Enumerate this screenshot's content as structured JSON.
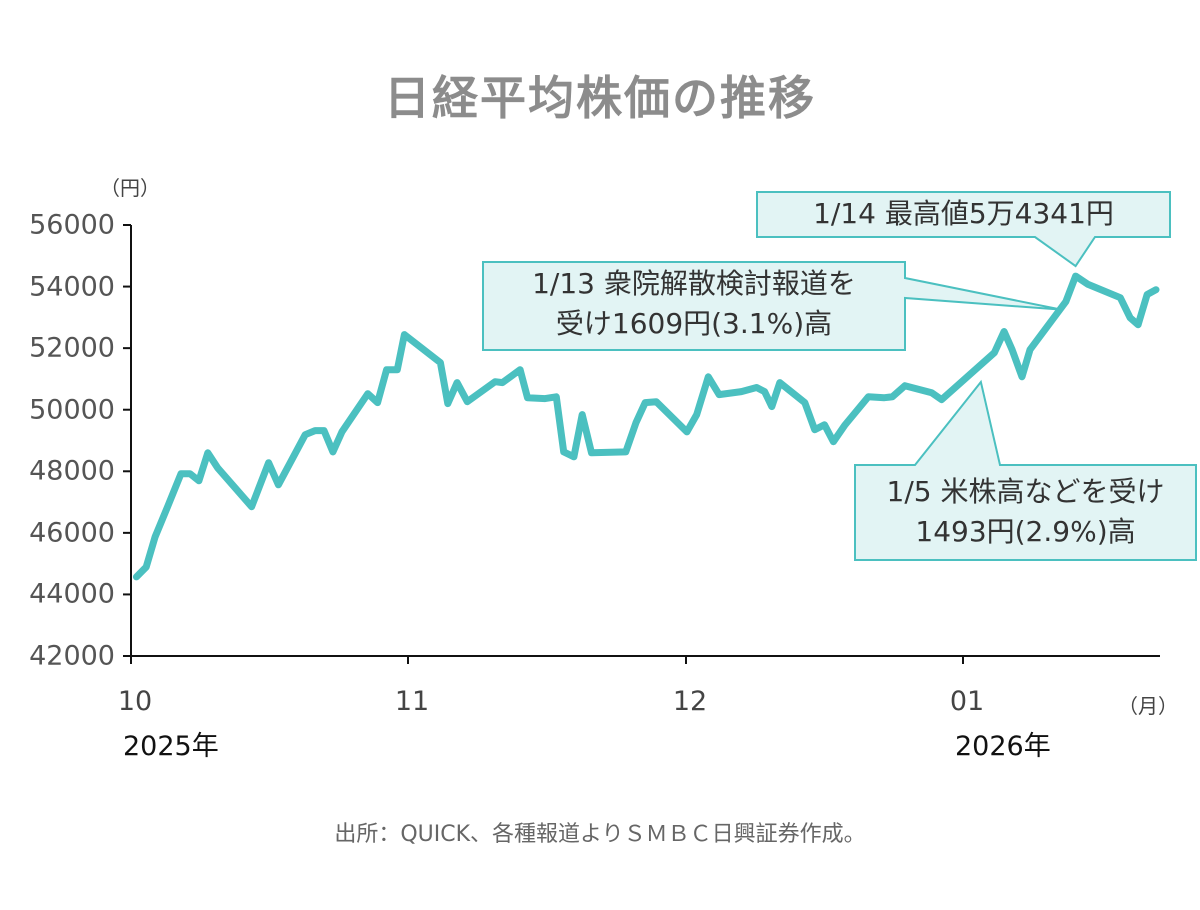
{
  "title": "日経平均株価の推移",
  "source": "出所：QUICK、各種報道よりＳＭＢＣ日興証券作成。",
  "colors": {
    "line": "#4bc0c0",
    "callout_fill": "#e2f4f4",
    "callout_border": "#4bc0c0",
    "axis": "#111111"
  },
  "chart_data": {
    "type": "line",
    "title": "日経平均株価の推移",
    "ylabel": "（円）",
    "xlabel": "（月）",
    "ylim": [
      42000,
      56000
    ],
    "yticks": [
      42000,
      44000,
      46000,
      48000,
      50000,
      52000,
      54000,
      56000
    ],
    "ytick_labels": [
      "42000",
      "44000",
      "46000",
      "48000",
      "50000",
      "52000",
      "54000",
      "56000"
    ],
    "x_unit": "days since 2025-10-01",
    "xlim": [
      0,
      116
    ],
    "xticks": [
      {
        "day": 0,
        "label": "10",
        "year": "2025年"
      },
      {
        "day": 31,
        "label": "11"
      },
      {
        "day": 61,
        "label": "12"
      },
      {
        "day": 92,
        "label": "01",
        "year": "2026年"
      }
    ],
    "grid": false,
    "series": [
      {
        "name": "日経平均株価",
        "points": [
          [
            0.6,
            44570
          ],
          [
            1.7,
            44890
          ],
          [
            2.7,
            45870
          ],
          [
            4.1,
            46850
          ],
          [
            5.6,
            47920
          ],
          [
            6.6,
            47920
          ],
          [
            7.6,
            47690
          ],
          [
            8.6,
            48600
          ],
          [
            9.7,
            48110
          ],
          [
            13.5,
            46850
          ],
          [
            15.4,
            48280
          ],
          [
            16.5,
            47560
          ],
          [
            19.5,
            49190
          ],
          [
            20.6,
            49320
          ],
          [
            21.6,
            49320
          ],
          [
            22.6,
            48630
          ],
          [
            23.6,
            49280
          ],
          [
            26.5,
            50520
          ],
          [
            27.6,
            50230
          ],
          [
            28.6,
            51300
          ],
          [
            29.8,
            51300
          ],
          [
            30.6,
            52440
          ],
          [
            34.5,
            51530
          ],
          [
            35.3,
            50200
          ],
          [
            36.3,
            50880
          ],
          [
            37.4,
            50260
          ],
          [
            40.4,
            50910
          ],
          [
            41.2,
            50880
          ],
          [
            43.1,
            51300
          ],
          [
            43.9,
            50390
          ],
          [
            45.8,
            50360
          ],
          [
            47.0,
            50420
          ],
          [
            47.8,
            48630
          ],
          [
            48.9,
            48470
          ],
          [
            49.8,
            49840
          ],
          [
            50.8,
            48600
          ],
          [
            54.5,
            48630
          ],
          [
            55.6,
            49580
          ],
          [
            56.6,
            50230
          ],
          [
            57.8,
            50260
          ],
          [
            61.1,
            49280
          ],
          [
            62.2,
            49840
          ],
          [
            63.5,
            51070
          ],
          [
            64.7,
            50490
          ],
          [
            67.2,
            50590
          ],
          [
            68.9,
            50720
          ],
          [
            69.8,
            50590
          ],
          [
            70.6,
            50100
          ],
          [
            71.5,
            50880
          ],
          [
            74.3,
            50230
          ],
          [
            75.4,
            49350
          ],
          [
            76.5,
            49510
          ],
          [
            77.5,
            48960
          ],
          [
            78.8,
            49510
          ],
          [
            81.4,
            50420
          ],
          [
            83.2,
            50390
          ],
          [
            84.1,
            50420
          ],
          [
            85.5,
            50780
          ],
          [
            88.5,
            50550
          ],
          [
            89.6,
            50330
          ],
          [
            95.5,
            51850
          ],
          [
            96.6,
            52540
          ],
          [
            97.5,
            51950
          ],
          [
            98.6,
            51070
          ],
          [
            99.5,
            51950
          ],
          [
            103.5,
            53510
          ],
          [
            104.6,
            54341
          ],
          [
            106.0,
            54070
          ],
          [
            109.6,
            53640
          ],
          [
            110.7,
            52990
          ],
          [
            111.6,
            52760
          ],
          [
            112.6,
            53740
          ],
          [
            113.6,
            53900
          ]
        ]
      }
    ],
    "annotations": [
      {
        "lines": [
          "1/14 最高値5万4341円"
        ],
        "target_day": 104.6,
        "target_value": 54341
      },
      {
        "lines": [
          "1/13 衆院解散検討報道を",
          "受け1609円(3.1%)高"
        ],
        "target_day": 103.0,
        "target_value": 53250
      },
      {
        "lines": [
          "1/5 米株高などを受け",
          "1493円(2.9%)高"
        ],
        "target_day": 94.0,
        "target_value": 50900
      }
    ]
  }
}
